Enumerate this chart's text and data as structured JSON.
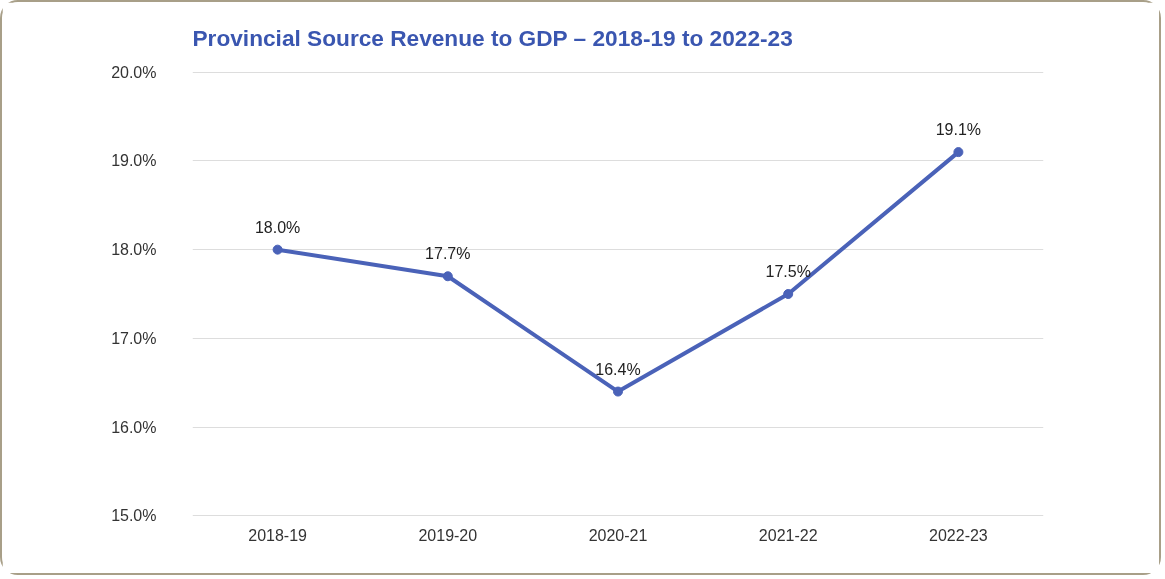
{
  "chart_data": {
    "type": "line",
    "title": "Provincial Source Revenue to GDP – 2018-19 to 2022-23",
    "categories": [
      "2018-19",
      "2019-20",
      "2020-21",
      "2021-22",
      "2022-23"
    ],
    "series": [
      {
        "color": "#4a62b8",
        "values": [
          18.0,
          17.7,
          16.4,
          17.5,
          19.1
        ],
        "value_labels": [
          "18.0%",
          "17.7%",
          "16.4%",
          "17.5%",
          "19.1%"
        ]
      }
    ],
    "ylim": [
      15,
      20
    ],
    "yticks": [
      {
        "value": 15,
        "label": "15.0%"
      },
      {
        "value": 16,
        "label": "16.0%"
      },
      {
        "value": 17,
        "label": "17.0%"
      },
      {
        "value": 18,
        "label": "18.0%"
      },
      {
        "value": 19,
        "label": "19.0%"
      },
      {
        "value": 20,
        "label": "20.0%"
      }
    ],
    "grid": "y",
    "marker": "circle",
    "line_style": "solid"
  }
}
